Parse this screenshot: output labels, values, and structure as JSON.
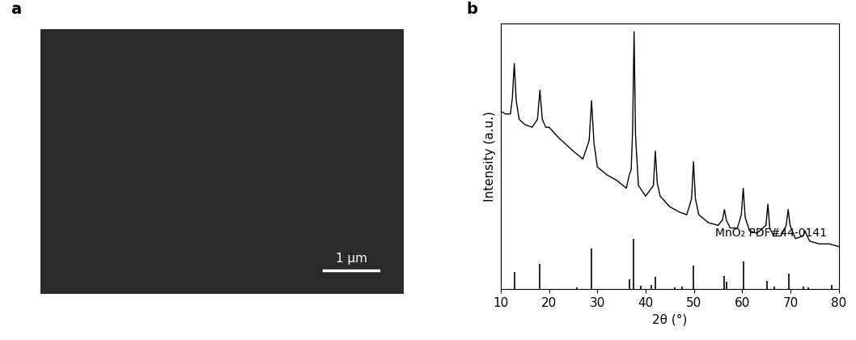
{
  "panel_a": {
    "label": "a",
    "type": "image",
    "scale_bar": "1 µm"
  },
  "chart_data": {
    "label": "b",
    "type": "line",
    "x_label": "2θ (°)",
    "y_label": "Intensity (a.u.)",
    "xlim": [
      10,
      80
    ],
    "xticks": [
      10,
      20,
      30,
      40,
      50,
      60,
      70,
      80
    ],
    "ylim": [
      0,
      100
    ],
    "tick_labels": "x",
    "annotation": "MnO₂ PDF#44-0141",
    "series": [
      {
        "type": "line",
        "color": "#000000",
        "x": [
          10,
          11,
          12,
          12.4,
          12.8,
          13.2,
          13.8,
          15,
          16.5,
          17.6,
          18.1,
          18.6,
          19.3,
          20,
          22,
          25,
          27,
          28.3,
          28.8,
          29.3,
          30,
          32,
          34,
          36,
          36.6,
          37.0,
          37.3,
          37.6,
          37.9,
          38.5,
          40,
          41.6,
          42.0,
          42.4,
          43,
          45,
          47,
          48.5,
          49.5,
          49.9,
          50.3,
          51,
          53,
          55,
          55.9,
          56.3,
          56.7,
          57.5,
          59,
          59.8,
          60.2,
          60.6,
          61.5,
          63,
          64.9,
          65.3,
          65.7,
          66.5,
          68,
          69.1,
          69.5,
          69.9,
          71,
          72.6,
          73,
          73.4,
          74,
          76,
          78,
          80
        ],
        "values": [
          67,
          66,
          66,
          72,
          85,
          71,
          64,
          62,
          61,
          64,
          75,
          64,
          61,
          61,
          57,
          52,
          49,
          56,
          71,
          55,
          46,
          43,
          41,
          38,
          43,
          45,
          60,
          97,
          58,
          39,
          35,
          39,
          52,
          40,
          35,
          31,
          29,
          28,
          34,
          48,
          34,
          28,
          25,
          24,
          26,
          30,
          26,
          23,
          23,
          28,
          38,
          27,
          22,
          21,
          24,
          32,
          23,
          20,
          20,
          24,
          30,
          24,
          19,
          20,
          22,
          20,
          18,
          17,
          17,
          16
        ]
      },
      {
        "type": "stem",
        "color": "#000000",
        "x": [
          12.8,
          18.1,
          25.8,
          28.8,
          36.7,
          37.5,
          39.0,
          41.2,
          42.0,
          46.1,
          47.5,
          49.9,
          56.2,
          56.7,
          60.3,
          65.1,
          66.7,
          69.7,
          72.7,
          73.7,
          78.6
        ],
        "values": [
          6.4,
          9.6,
          0.6,
          15.4,
          3.8,
          19,
          1.2,
          1.5,
          4.6,
          0.6,
          0.9,
          9,
          4.9,
          2.6,
          10.4,
          2.9,
          0.9,
          5.8,
          0.9,
          0.6,
          1.4
        ]
      }
    ]
  }
}
